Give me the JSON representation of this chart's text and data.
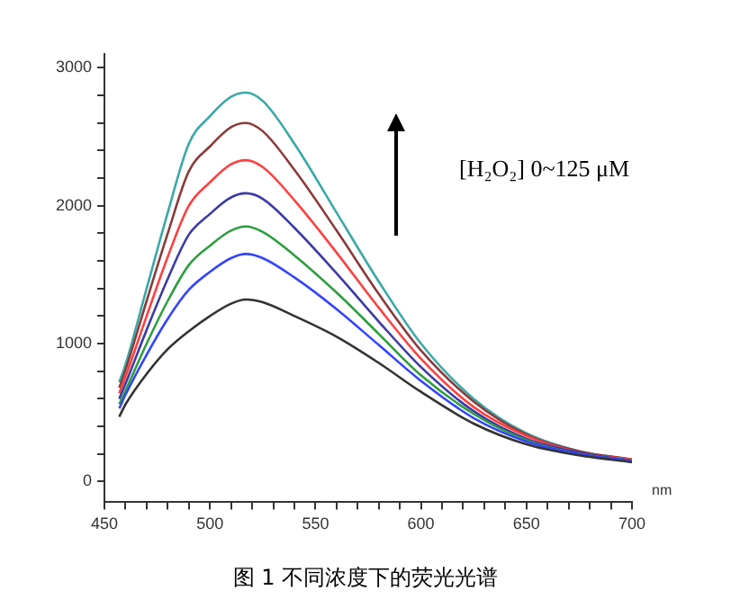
{
  "chart_data": {
    "type": "line",
    "xlabel": "nm",
    "annotations": [
      "[H₂O₂] 0~125 μM",
      "图 1 不同浓度下的荧光光谱"
    ],
    "x": [
      457,
      460,
      470,
      480,
      490,
      500,
      510,
      517,
      525,
      540,
      560,
      580,
      600,
      625,
      650,
      675,
      700
    ],
    "series": [
      {
        "color": "#333333",
        "values": [
          470,
          560,
          780,
          960,
          1090,
          1200,
          1290,
          1320,
          1300,
          1200,
          1050,
          860,
          650,
          420,
          270,
          190,
          140
        ]
      },
      {
        "color": "#3344ff",
        "values": [
          530,
          630,
          920,
          1180,
          1390,
          1520,
          1620,
          1650,
          1620,
          1480,
          1250,
          990,
          730,
          460,
          290,
          200,
          150
        ]
      },
      {
        "color": "#2e9e3e",
        "values": [
          560,
          660,
          1000,
          1310,
          1570,
          1710,
          1820,
          1850,
          1810,
          1640,
          1370,
          1070,
          770,
          490,
          300,
          200,
          150
        ]
      },
      {
        "color": "#3a3aa8",
        "values": [
          600,
          710,
          1100,
          1470,
          1790,
          1940,
          2060,
          2090,
          2050,
          1840,
          1510,
          1160,
          830,
          510,
          310,
          210,
          150
        ]
      },
      {
        "color": "#ff4040",
        "values": [
          640,
          760,
          1200,
          1630,
          2000,
          2170,
          2300,
          2330,
          2280,
          2040,
          1660,
          1260,
          890,
          540,
          330,
          210,
          160
        ]
      },
      {
        "color": "#8b3a3a",
        "values": [
          680,
          810,
          1310,
          1800,
          2250,
          2430,
          2570,
          2600,
          2540,
          2260,
          1820,
          1360,
          950,
          580,
          340,
          220,
          160
        ]
      },
      {
        "color": "#3aa8a8",
        "values": [
          720,
          850,
          1400,
          1950,
          2450,
          2650,
          2790,
          2820,
          2760,
          2450,
          1950,
          1450,
          1000,
          600,
          350,
          220,
          160
        ]
      }
    ],
    "xlim": [
      450,
      700
    ],
    "xticks": [
      450,
      {
        "value": 460,
        "label": null
      },
      {
        "value": 470,
        "label": null
      },
      {
        "value": 480,
        "label": null
      },
      {
        "value": 490,
        "label": null
      },
      500,
      {
        "value": 510,
        "label": null
      },
      {
        "value": 520,
        "label": null
      },
      {
        "value": 530,
        "label": null
      },
      {
        "value": 540,
        "label": null
      },
      550,
      {
        "value": 560,
        "label": null
      },
      {
        "value": 570,
        "label": null
      },
      {
        "value": 580,
        "label": null
      },
      {
        "value": 590,
        "label": null
      },
      600,
      {
        "value": 610,
        "label": null
      },
      {
        "value": 620,
        "label": null
      },
      {
        "value": 630,
        "label": null
      },
      {
        "value": 640,
        "label": null
      },
      650,
      {
        "value": 660,
        "label": null
      },
      {
        "value": 670,
        "label": null
      },
      {
        "value": 680,
        "label": null
      },
      {
        "value": 690,
        "label": null
      },
      700
    ],
    "ylim": [
      -150,
      3100
    ],
    "yticks": [
      0,
      {
        "value": 200,
        "label": null
      },
      {
        "value": 400,
        "label": null
      },
      {
        "value": 600,
        "label": null
      },
      {
        "value": 800,
        "label": null
      },
      1000,
      {
        "value": 1200,
        "label": null
      },
      {
        "value": 1400,
        "label": null
      },
      {
        "value": 1600,
        "label": null
      },
      {
        "value": 1800,
        "label": null
      },
      2000,
      {
        "value": 2200,
        "label": null
      },
      {
        "value": 2400,
        "label": null
      },
      {
        "value": 2600,
        "label": null
      },
      {
        "value": 2800,
        "label": null
      },
      3000
    ],
    "grid": false,
    "legend": false,
    "marker": "none",
    "line_style": "solid"
  }
}
